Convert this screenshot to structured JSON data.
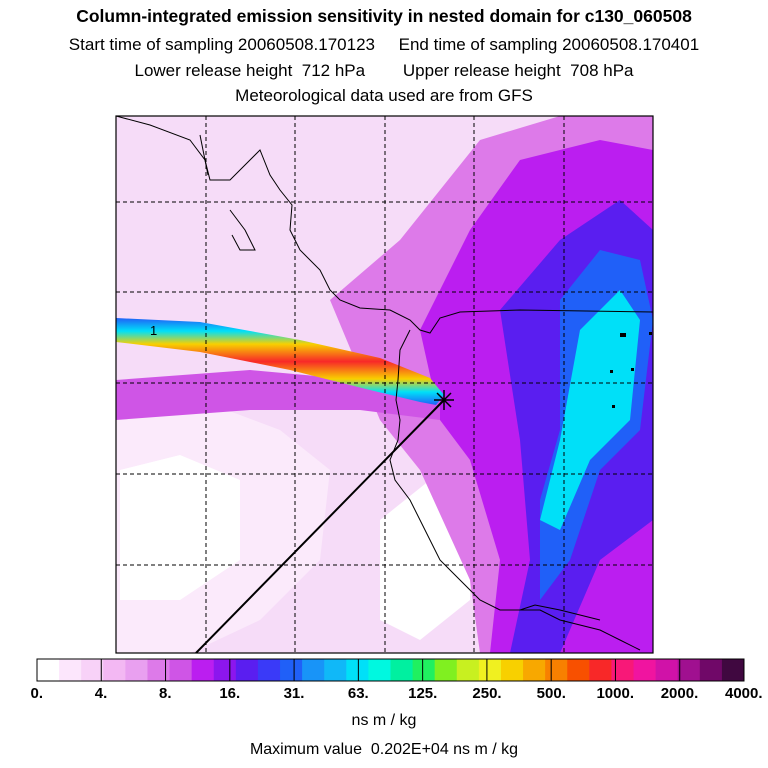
{
  "header": {
    "title": "Column-integrated emission sensitivity in nested domain for c130_060508",
    "line2": "Start time of sampling 20060508.170123     End time of sampling 20060508.170401",
    "line3": "Lower release height  712 hPa        Upper release height  708 hPa",
    "line4": "Meteorological data used are from GFS"
  },
  "map": {
    "marker_label": "1",
    "release_marker": "plus-cross"
  },
  "colorbar": {
    "labels": [
      "0.",
      "4.",
      "8.",
      "16.",
      "31.",
      "63.",
      "125.",
      "250.",
      "500.",
      "1000.",
      "2000.",
      "4000."
    ],
    "colors": [
      "#ffffff",
      "#fce6fc",
      "#f8d2f8",
      "#f3b8f3",
      "#e9a0f0",
      "#dd7ae9",
      "#cf55e6",
      "#bb1ef0",
      "#8c16ee",
      "#5a1ef0",
      "#3a3af8",
      "#2060f8",
      "#1894f8",
      "#10b8f8",
      "#00e0f8",
      "#00f8e0",
      "#00f0a0",
      "#20f060",
      "#80f020",
      "#c8f020",
      "#f0f020",
      "#f8d000",
      "#f8a800",
      "#f88000",
      "#f85000",
      "#f82828",
      "#f81878",
      "#f014a0",
      "#d012a8",
      "#a01090",
      "#700868",
      "#400840"
    ],
    "units": "ns m / kg"
  },
  "footer": {
    "max_value": "Maximum value  0.202E+04 ns m / kg"
  }
}
